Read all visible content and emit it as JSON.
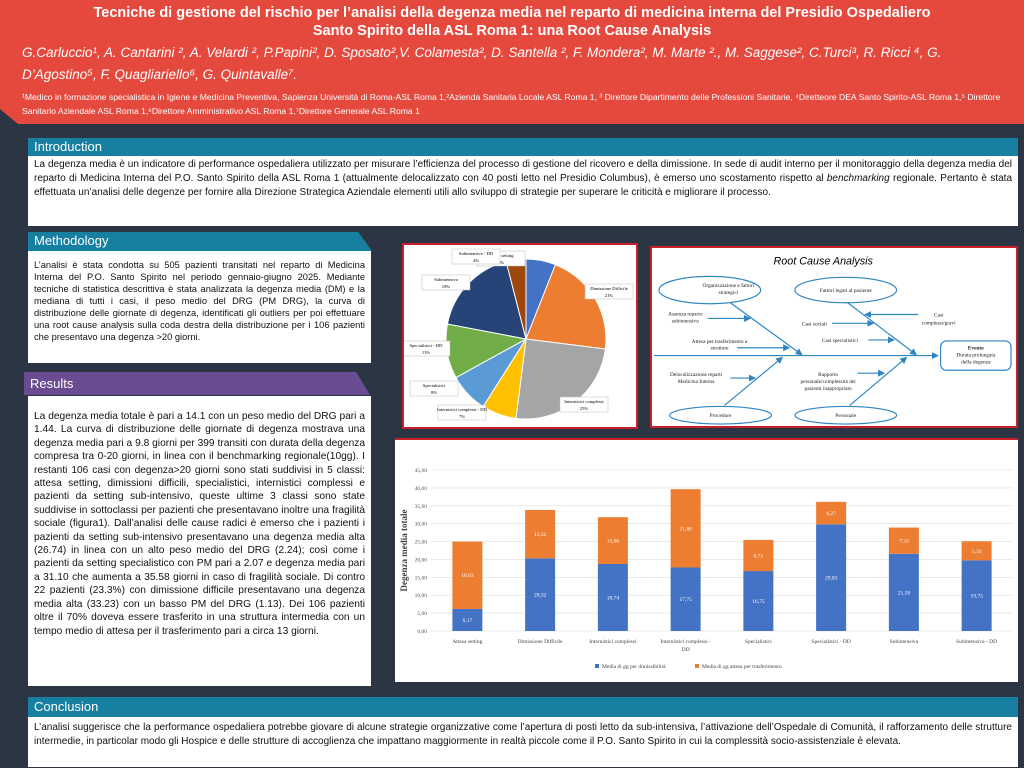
{
  "header": {
    "title_line1": "Tecniche di gestione del rischio per l’analisi della degenza media nel reparto di medicina interna del Presidio Ospedaliero",
    "title_line2": "Santo Spirito della ASL Roma 1: una Root Cause Analysis",
    "authors": "G.Carluccio¹, A. Cantarini ², A. Velardi ², P.Papini², D. Sposato²,V. Colamesta², D. Santella ², F. Mondera², M. Marte ²., M. Saggese², C.Turci³, R. Ricci ⁴, G. D’Agostino⁵, F. Quagliariello⁶, G. Quintavalle⁷.",
    "affiliations": "¹Medico in formazione specialistica in Igiene e Medicina Preventiva, Sapienza Università di Roma-ASL Roma 1,²Azienda Sanitaria Locale ASL Roma 1, ³ Direttore Dipartimento delle Professioni Sanitarie,  ⁴Diretteore DEA Santo Spirito-ASL Roma 1,⁵ Direttore Sanitario Aziendale ASL Roma 1,⁶Direttore Amministrativo ASL Roma 1,⁷Direttore Generale ASL Roma 1"
  },
  "introduction": {
    "heading": "Introduction",
    "text_a": "La degenza media è un indicatore di performance ospedaliera utilizzato per misurare l’efficienza del processo di gestione del ricovero e della dimissione. In sede di audit interno per il monitoraggio della degenza media del reparto di Medicina Interna del P.O. Santo Spirito della ASL Roma 1 (attualmente delocalizzato con 40 posti letto nel Presidio Columbus), è emerso uno scostamento rispetto al ",
    "text_em": "benchmarking",
    "text_b": " regionale. Pertanto è stata effettuata un’analisi delle degenze per fornire alla Direzione Strategica Aziendale elementi utili allo sviluppo di strategie per superare le criticità e migliorare il processo."
  },
  "methodology": {
    "heading": "Methodology",
    "text": "L’analisi è stata condotta su 505 pazienti transitati nel reparto di Medicina Interna del P.O. Santo Spirito nel periodo gennaio-giugno 2025. Mediante tecniche di statistica descrittiva è stata analizzata la degenza media (DM) e la mediana di tutti i casi, il peso medio del DRG (PM DRG), la curva di distribuzione delle giornate di degenza, identificati gli outliers per poi effettuare una root cause analysis sulla coda destra della distribuzione per i 106 pazienti che presentavo una degenza >20 giorni."
  },
  "results": {
    "heading": "Results",
    "text": "La degenza media totale è pari a 14.1 con un peso medio del DRG pari a 1.44. La curva di distribuzione delle giornate di degenza mostrava una degenza media pari a 9.8 giorni per 399 transiti con durata della degenza compresa tra 0-20 giorni, in linea con il benchmarking regionale(10gg). I restanti 106 casi con degenza>20 giorni sono stati suddivisi in 5 classi: attesa setting, dimissioni difficili, specialistici, internistici complessi e pazienti da setting sub-intensivo, queste ultime 3 classi sono state suddivise in sottoclassi per pazienti che presentavano inoltre una fragilità sociale (figura1). Dall’analisi delle cause radici è emerso che i pazienti i pazienti da setting sub-intensivo presentavano una degenza media alta (26.74) in linea con un alto peso medio del DRG (2.24); così come i pazienti da setting specialistico con PM pari a 2.07 e degenza media pari a 31.10 che aumenta a 35.58 giorni in caso di fragilità sociale. Di contro 22 pazienti (23.3%) con dimissione difficile presentavano una degenza media alta (33.23) con un basso PM del DRG (1.13). Dei 106 pazienti oltre il 70% doveva essere trasferito in una struttura intermedia con un tempo medio di attesa per il trasferimento pari a circa 13 giorni."
  },
  "conclusion": {
    "heading": "Conclusion",
    "text": "L’analisi suggerisce che la performance ospedaliera potrebbe giovare di alcune strategie organizzative come l’apertura di posti letto da sub-intensiva, l’attivazione dell’Ospedale di Comunità, il rafforzamento delle strutture intermedie, in particolar modo gli Hospice e delle strutture di accoglienza che impattano maggiormente in realtà piccole come il P.O. Santo Spirito in cui la complessità socio-assistenziale è elevata."
  },
  "rca": {
    "title": "Root Cause Analysis",
    "org": [
      "Organizzazione e fattori",
      "strategici"
    ],
    "paz": "Fattori legati al paziente",
    "proc": "Procedure",
    "pers": "Personale",
    "assenza": [
      "Assenza reparto",
      "subintensivo"
    ],
    "attesa": [
      "Attesa per trasferimento a",
      "strutture"
    ],
    "sociali": "Casi sociali",
    "specialistici": "Casi specialistici",
    "complessi": [
      "Casi",
      "complessi/gravi"
    ],
    "deloc": [
      "Delocalizzazione reparti",
      "Medicina Interna"
    ],
    "rapporto": [
      "Rapporto",
      "personale/complessità dei",
      "pazienti inappropriato"
    ],
    "evento": [
      "Evento",
      "Durata prolungata",
      "della degenza"
    ]
  },
  "chart_data": [
    {
      "type": "pie",
      "categories": [
        "Attesa setting",
        "Dimissione Difficile",
        "Internistici complessi",
        "Internistici complessi - DD",
        "Specialistici",
        "Specialistici - DD",
        "Subintensiva",
        "Subintensiva - DD"
      ],
      "values": [
        6,
        21,
        25,
        7,
        8,
        11,
        18,
        4
      ],
      "labels": [
        "6%",
        "21%",
        "25%",
        "7%",
        "8%",
        "11%",
        "18%",
        "4%"
      ],
      "colors": [
        "#4472c4",
        "#ed7d31",
        "#a5a5a5",
        "#ffc000",
        "#5b9bd5",
        "#70ad47",
        "#264478",
        "#9e480e"
      ]
    },
    {
      "type": "bar",
      "stacked": true,
      "categories": [
        "Attesa setting",
        "Dimissione Difficile",
        "Internistici complessi",
        "Internistici complessi - DD",
        "Specialistici",
        "Specialistici - DD",
        "Subintensiva",
        "Subintensiva - DD"
      ],
      "series": [
        {
          "name": "Media di gg per dimissibilità",
          "color": "#4472c4",
          "values": [
            6.17,
            20.32,
            18.74,
            17.75,
            16.75,
            29.83,
            21.58,
            19.75
          ],
          "labels": [
            "6,17",
            "20,32",
            "18,74",
            "17,75",
            "16,75",
            "29,83",
            "21,58",
            "19,75"
          ]
        },
        {
          "name": "Media di gg attesa per trasferimento",
          "color": "#ed7d31",
          "values": [
            18.83,
            13.52,
            13.06,
            21.88,
            8.71,
            6.27,
            7.33,
            5.33
          ],
          "labels": [
            "18,83",
            "13,52",
            "13,06",
            "21,88",
            "8,71",
            "6,27",
            "7,33",
            "5,33"
          ]
        }
      ],
      "ylabel": "Degenza media totale",
      "ylim": [
        0,
        45
      ],
      "yticks": [
        "0,00",
        "5,00",
        "10,00",
        "15,00",
        "20,00",
        "25,00",
        "30,00",
        "35,00",
        "40,00",
        "45,00"
      ],
      "grid": true,
      "legend": "bottom"
    }
  ]
}
